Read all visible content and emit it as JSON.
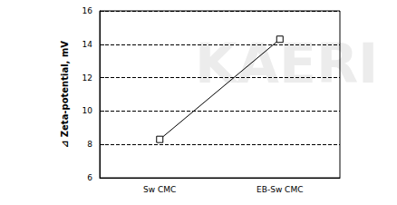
{
  "chart_data": {
    "type": "line",
    "y_label": "⊿ Zeta-potential, mV",
    "categories": [
      "Sw CMC",
      "EB-Sw CMC"
    ],
    "values": [
      8.3,
      14.3
    ],
    "color": "#000000",
    "marker": "square",
    "line_style": "solid",
    "ylim": [
      6,
      16
    ],
    "yticks": [
      6,
      8,
      10,
      12,
      14,
      16
    ],
    "grid": true,
    "annotations": [
      "KAERI"
    ]
  }
}
